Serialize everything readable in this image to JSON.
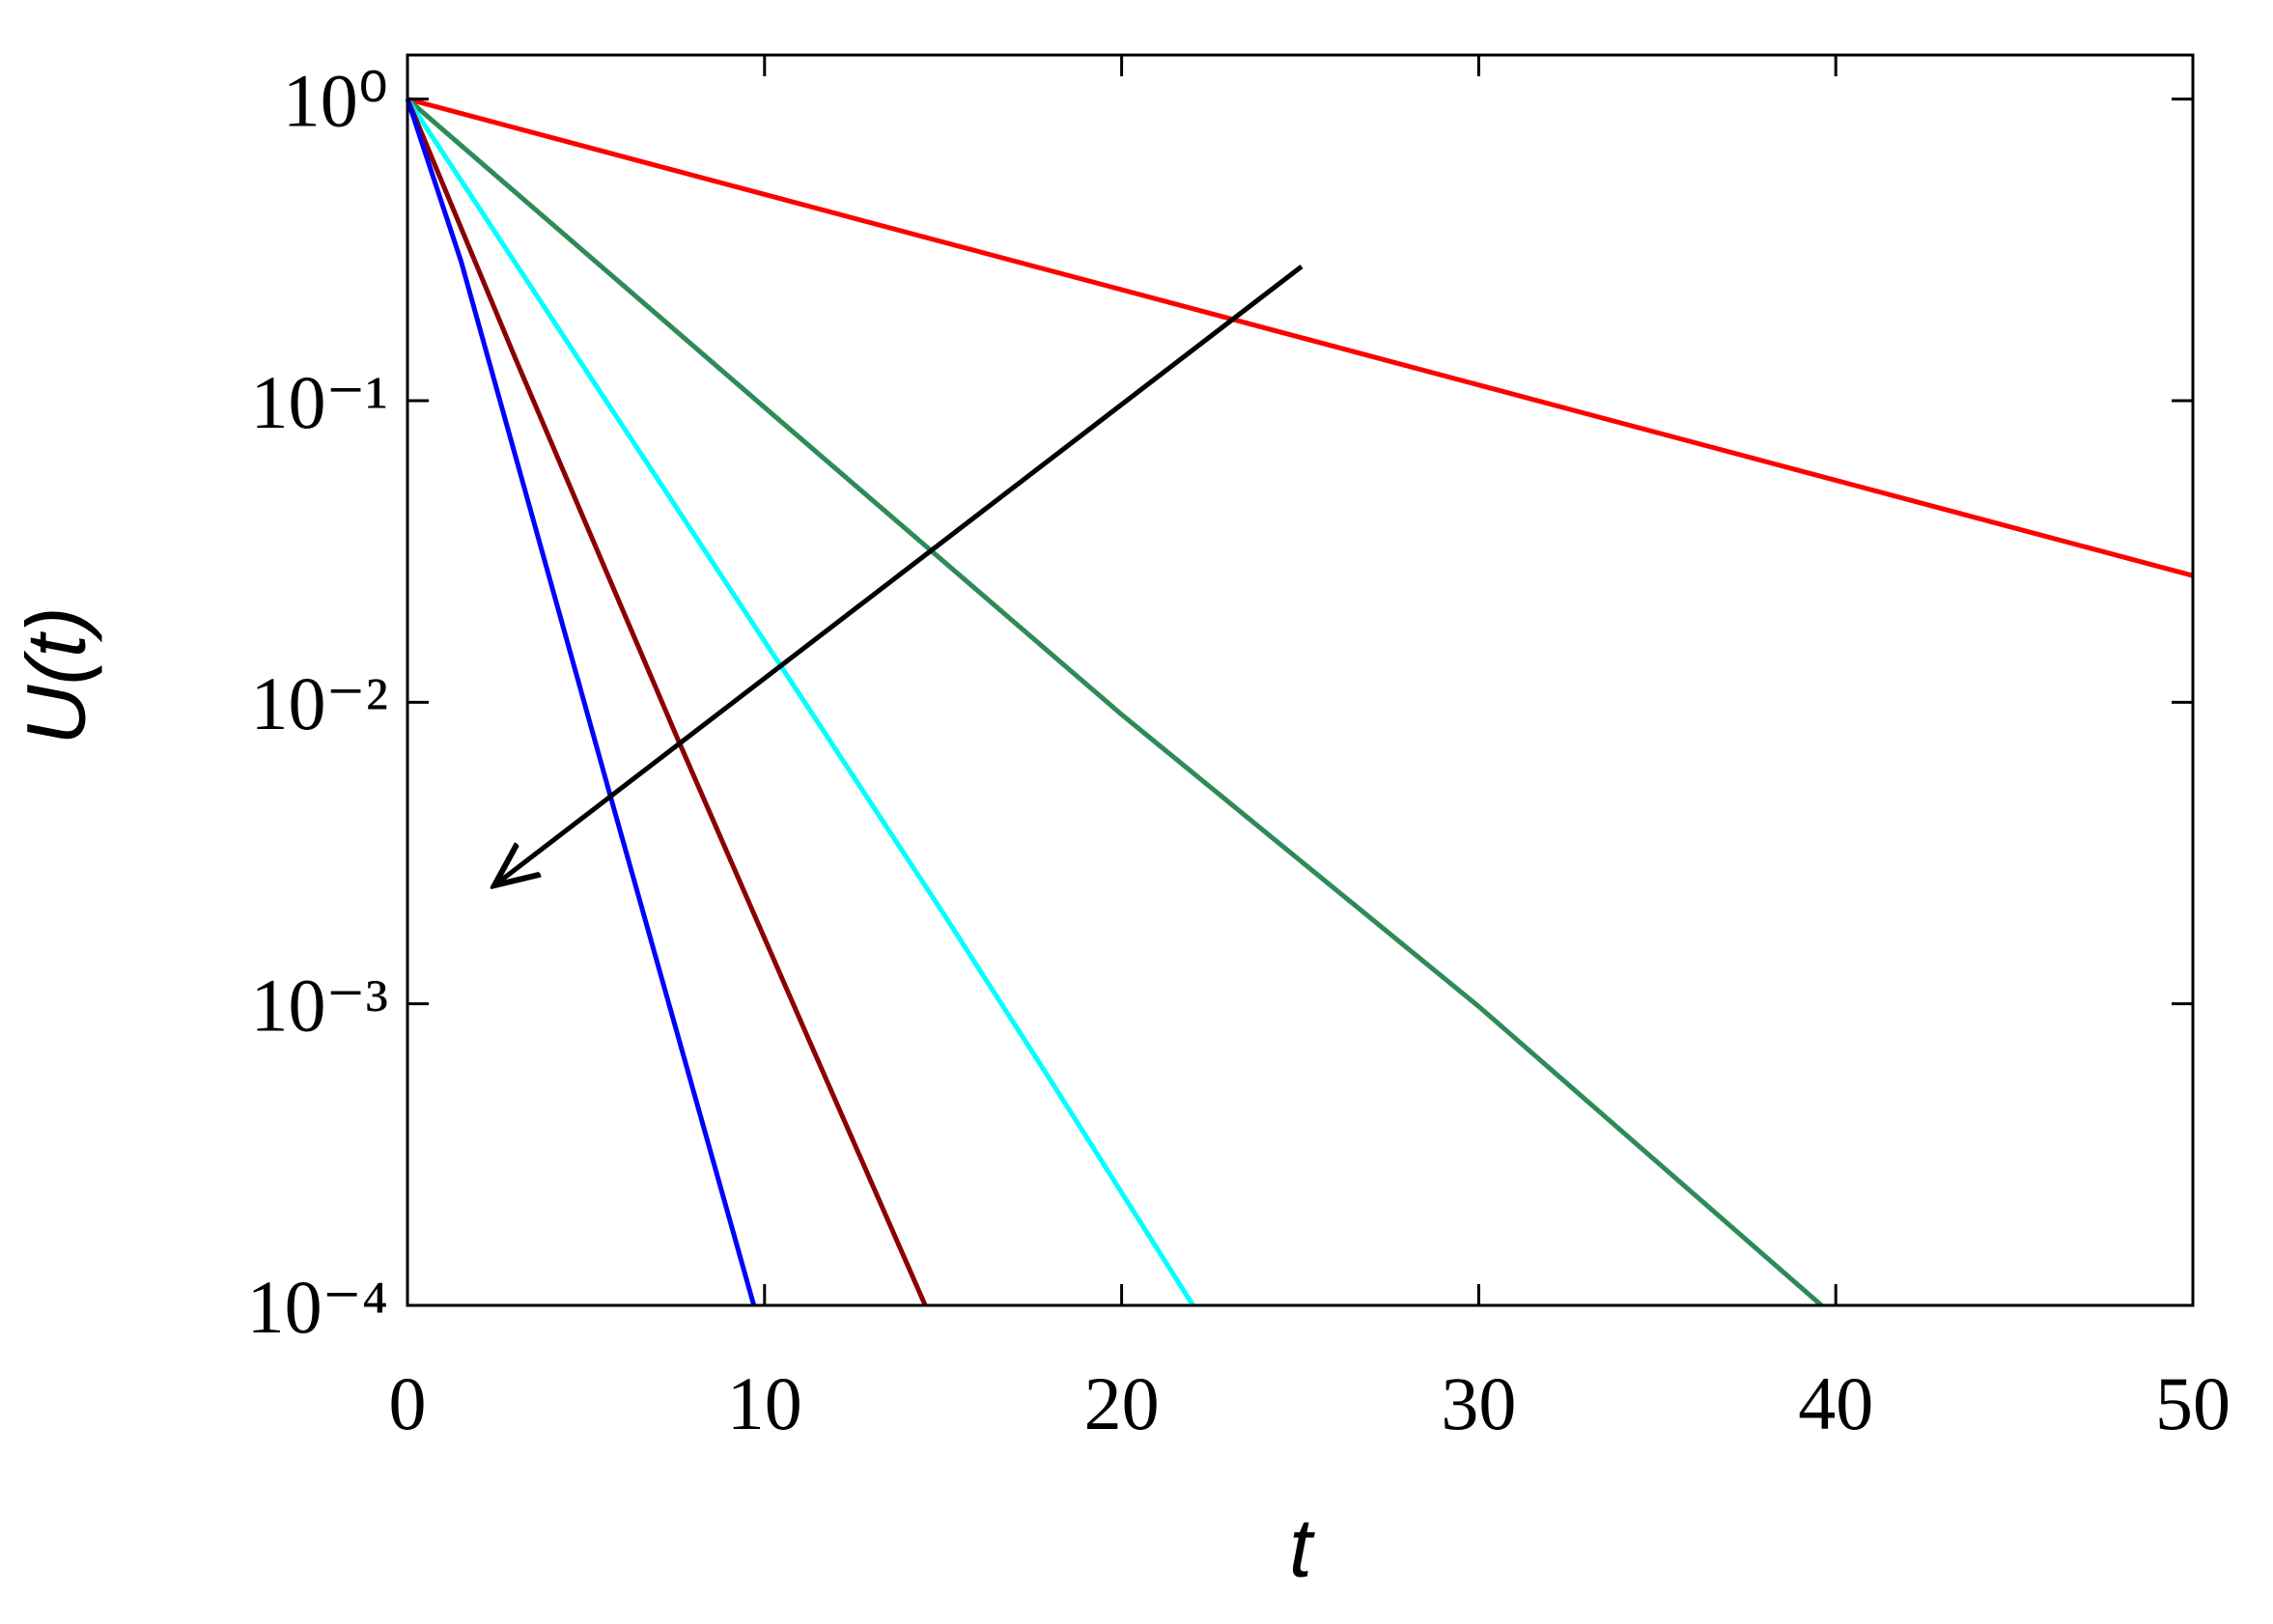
{
  "chart_data": {
    "type": "line",
    "xlabel": "t",
    "ylabel": "U(t)",
    "log_y": true,
    "xlim": [
      0,
      50
    ],
    "ylim": [
      0.0001,
      1.4
    ],
    "xticks": [
      0,
      10,
      20,
      30,
      40,
      50
    ],
    "yticks": [
      {
        "value": 1,
        "label": "10⁰"
      },
      {
        "value": 0.1,
        "label": "10⁻¹"
      },
      {
        "value": 0.01,
        "label": "10⁻²"
      },
      {
        "value": 0.001,
        "label": "10⁻³"
      },
      {
        "value": 0.0001,
        "label": "10⁻⁴"
      }
    ],
    "grid": false,
    "series": [
      {
        "color": "#ff0000",
        "x": [
          0,
          50
        ],
        "values": [
          1,
          0.0263
        ]
      },
      {
        "color": "#2e8b57",
        "x": [
          0,
          10,
          20,
          30,
          39.6
        ],
        "values": [
          1,
          0.095,
          0.0091,
          0.00098,
          0.0001
        ]
      },
      {
        "color": "#00ffff",
        "x": [
          0,
          5,
          10.4,
          15,
          18,
          22
        ],
        "values": [
          1,
          0.126,
          0.0135,
          0.002,
          0.00056,
          0.0001
        ]
      },
      {
        "color": "#8b0000",
        "x": [
          0,
          3,
          7.6,
          10.8,
          14.5
        ],
        "values": [
          1,
          0.14,
          0.0074,
          0.001,
          0.0001
        ]
      },
      {
        "color": "#0000ff",
        "x": [
          0,
          1.5,
          5.7,
          9.7
        ],
        "values": [
          1,
          0.29,
          0.0048,
          0.0001
        ]
      }
    ]
  }
}
